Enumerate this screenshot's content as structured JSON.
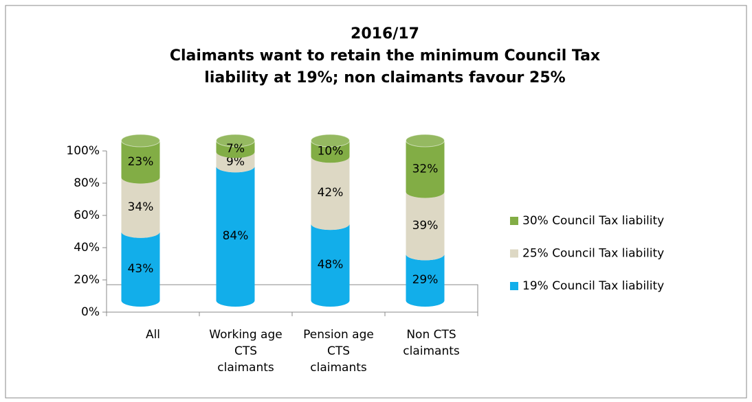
{
  "chart_data": {
    "type": "stacked_cylinder",
    "title": "2016/17",
    "subtitle": "Claimants want to retain the minimum Council Tax liability at 19%; non claimants favour 25%",
    "categories": [
      "All",
      "Working age CTS claimants",
      "Pension age CTS claimants",
      "Non CTS claimants"
    ],
    "series": [
      {
        "name": "19% Council Tax liability",
        "color": "#12aeea",
        "values": [
          43,
          84,
          48,
          29
        ],
        "value_labels": [
          "43%",
          "84%",
          "48%",
          "29%"
        ]
      },
      {
        "name": "25% Council Tax liability",
        "color": "#ddd8c4",
        "values": [
          34,
          9,
          42,
          39
        ],
        "value_labels": [
          "34%",
          "9%",
          "42%",
          "39%"
        ]
      },
      {
        "name": "30% Council Tax liability",
        "color": "#82ad45",
        "values": [
          23,
          7,
          10,
          32
        ],
        "value_labels": [
          "23%",
          "7%",
          "10%",
          "32%"
        ]
      }
    ],
    "ylim": [
      0,
      100
    ],
    "yticks": [
      {
        "value": 0,
        "label": "0%"
      },
      {
        "value": 20,
        "label": "20%"
      },
      {
        "value": 40,
        "label": "40%"
      },
      {
        "value": 60,
        "label": "60%"
      },
      {
        "value": 80,
        "label": "80%"
      },
      {
        "value": 100,
        "label": "100%"
      }
    ],
    "legend": "right"
  }
}
